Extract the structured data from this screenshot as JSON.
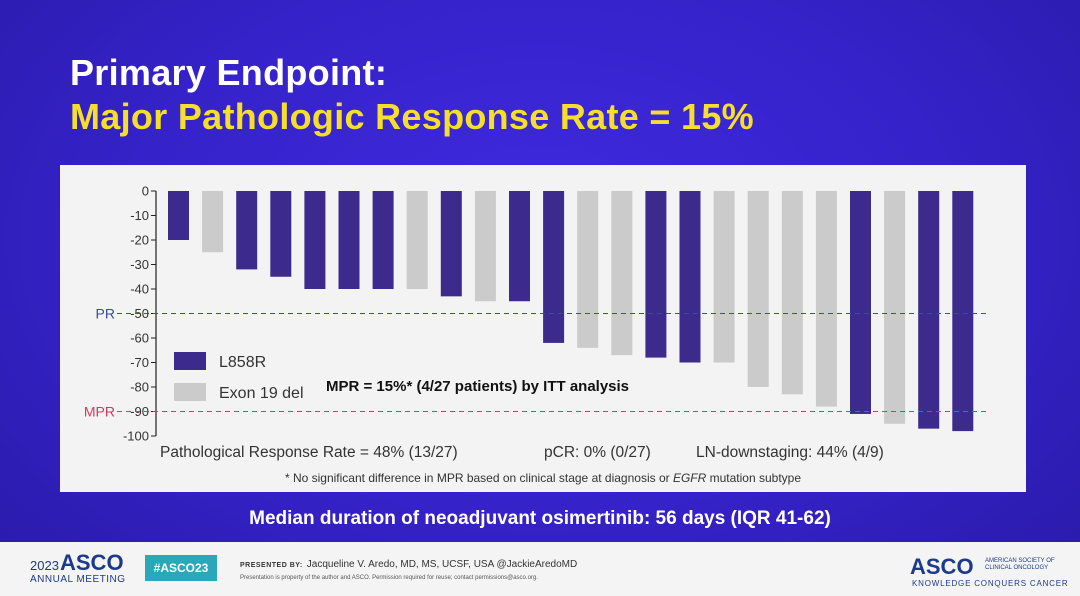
{
  "slide": {
    "title_line1": "Primary Endpoint:",
    "title_line2": "Major Pathologic Response Rate = 15%",
    "bottom_note": "Median duration of neoadjuvant osimertinib: 56 days (IQR 41-62)"
  },
  "chart_data": {
    "type": "bar",
    "ylim": [
      -100,
      0
    ],
    "yticks": [
      0,
      -10,
      -20,
      -30,
      -40,
      -50,
      -60,
      -70,
      -80,
      -90,
      -100
    ],
    "grid": false,
    "legend_placement": "middle-left",
    "series": [
      {
        "name": "L858R",
        "color": "#3c2b8c"
      },
      {
        "name": "Exon 19 del",
        "color": "#cbcbcb"
      }
    ],
    "bars": [
      {
        "value": -20,
        "series": "L858R"
      },
      {
        "value": -25,
        "series": "Exon 19 del"
      },
      {
        "value": -32,
        "series": "L858R"
      },
      {
        "value": -35,
        "series": "L858R"
      },
      {
        "value": -40,
        "series": "L858R"
      },
      {
        "value": -40,
        "series": "L858R"
      },
      {
        "value": -40,
        "series": "L858R"
      },
      {
        "value": -40,
        "series": "Exon 19 del"
      },
      {
        "value": -43,
        "series": "L858R"
      },
      {
        "value": -45,
        "series": "Exon 19 del"
      },
      {
        "value": -45,
        "series": "L858R"
      },
      {
        "value": -62,
        "series": "L858R"
      },
      {
        "value": -64,
        "series": "Exon 19 del"
      },
      {
        "value": -67,
        "series": "Exon 19 del"
      },
      {
        "value": -68,
        "series": "L858R"
      },
      {
        "value": -70,
        "series": "L858R"
      },
      {
        "value": -70,
        "series": "Exon 19 del"
      },
      {
        "value": -80,
        "series": "Exon 19 del"
      },
      {
        "value": -83,
        "series": "Exon 19 del"
      },
      {
        "value": -88,
        "series": "Exon 19 del"
      },
      {
        "value": -91,
        "series": "L858R"
      },
      {
        "value": -95,
        "series": "Exon 19 del"
      },
      {
        "value": -97,
        "series": "L858R"
      },
      {
        "value": -98,
        "series": "L858R"
      }
    ],
    "reference_lines": [
      {
        "label": "PR",
        "value": -50,
        "color": "#3a4aa8"
      },
      {
        "label": "MPR",
        "value": -90,
        "color": "#d23a5a"
      }
    ],
    "annotation": "MPR = 15%* (4/27 patients) by ITT analysis",
    "stats": {
      "prr": "Pathological Response Rate = 48% (13/27)",
      "pcr": "pCR: 0% (0/27)",
      "ln": "LN-downstaging: 44% (4/9)"
    },
    "footnote_parts": [
      "* No significant difference in MPR based on clinical stage at diagnosis or ",
      "EGFR",
      " mutation subtype"
    ]
  },
  "footer": {
    "year": "2023",
    "asco": "ASCO",
    "annual": "ANNUAL MEETING",
    "hashtag": "#ASCO23",
    "presented_by_label": "PRESENTED BY:",
    "presenter": "Jacqueline V. Aredo, MD, MS, UCSF, USA @JackieAredoMD",
    "disclaimer": "Presentation is property of the author and ASCO. Permission required for reuse; contact permissions@asco.org.",
    "asco_right": "ASCO",
    "society": "AMERICAN SOCIETY OF CLINICAL ONCOLOGY",
    "tagline": "KNOWLEDGE CONQUERS CANCER"
  }
}
